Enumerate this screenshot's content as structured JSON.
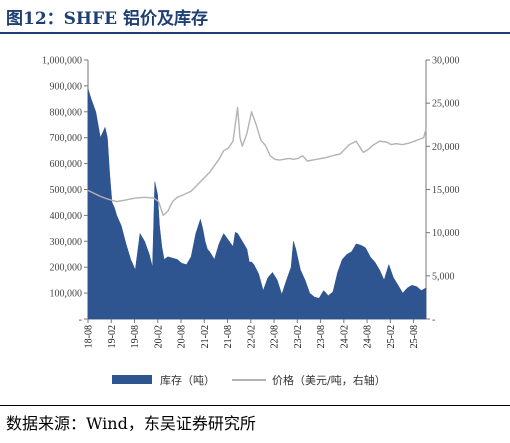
{
  "title": "图12：SHFE 铝价及库存",
  "source": "数据来源：Wind，东吴证券研究所",
  "chart_data": {
    "type": "area+line",
    "left_axis": {
      "ticks": [
        0,
        100000,
        200000,
        300000,
        400000,
        500000,
        600000,
        700000,
        800000,
        900000,
        1000000
      ],
      "tick_labels": [
        "-",
        "100,000",
        "200,000",
        "300,000",
        "400,000",
        "500,000",
        "600,000",
        "700,000",
        "800,000",
        "900,000",
        "1,000,000"
      ],
      "ylim": [
        0,
        1000000
      ]
    },
    "right_axis": {
      "ticks": [
        0,
        5000,
        10000,
        15000,
        20000,
        25000,
        30000
      ],
      "tick_labels": [
        "-",
        "5,000",
        "10,000",
        "15,000",
        "20,000",
        "25,000",
        "30,000"
      ],
      "ylim": [
        0,
        30000
      ]
    },
    "x_tick_labels": [
      "18-08",
      "19-02",
      "19-08",
      "20-02",
      "20-08",
      "21-02",
      "21-08",
      "22-02",
      "22-08",
      "23-02",
      "23-08",
      "24-02",
      "24-08",
      "25-02",
      "25-08"
    ],
    "x_range": [
      2018.583,
      2025.85
    ],
    "legend": [
      "库存（吨）",
      "价格（美元/吨，右轴）"
    ],
    "colors": {
      "inventory": "#2f5590",
      "price": "#b3b3b3"
    },
    "inventory": {
      "x": [
        2018.58,
        2018.65,
        2018.75,
        2018.85,
        2018.95,
        2019.0,
        2019.05,
        2019.1,
        2019.15,
        2019.2,
        2019.3,
        2019.4,
        2019.5,
        2019.6,
        2019.7,
        2019.8,
        2019.9,
        2019.97,
        2020.02,
        2020.08,
        2020.12,
        2020.17,
        2020.22,
        2020.3,
        2020.4,
        2020.5,
        2020.6,
        2020.7,
        2020.8,
        2020.9,
        2021.0,
        2021.05,
        2021.1,
        2021.15,
        2021.2,
        2021.3,
        2021.4,
        2021.5,
        2021.6,
        2021.7,
        2021.75,
        2021.8,
        2021.9,
        2022.0,
        2022.05,
        2022.1,
        2022.15,
        2022.25,
        2022.35,
        2022.45,
        2022.55,
        2022.65,
        2022.75,
        2022.85,
        2022.95,
        2023.0,
        2023.05,
        2023.15,
        2023.25,
        2023.35,
        2023.45,
        2023.55,
        2023.65,
        2023.75,
        2023.85,
        2023.95,
        2024.05,
        2024.15,
        2024.25,
        2024.35,
        2024.45,
        2024.55,
        2024.65,
        2024.75,
        2024.85,
        2024.95,
        2025.05,
        2025.15,
        2025.25,
        2025.35,
        2025.45,
        2025.55,
        2025.65,
        2025.75,
        2025.85
      ],
      "values": [
        890000,
        850000,
        800000,
        700000,
        740000,
        700000,
        560000,
        450000,
        430000,
        400000,
        360000,
        290000,
        230000,
        190000,
        330000,
        300000,
        250000,
        200000,
        530000,
        480000,
        360000,
        280000,
        230000,
        240000,
        235000,
        230000,
        215000,
        210000,
        240000,
        330000,
        385000,
        350000,
        300000,
        270000,
        260000,
        230000,
        290000,
        330000,
        305000,
        280000,
        335000,
        330000,
        300000,
        270000,
        220000,
        220000,
        210000,
        175000,
        110000,
        160000,
        180000,
        150000,
        95000,
        150000,
        200000,
        300000,
        270000,
        190000,
        150000,
        100000,
        85000,
        80000,
        110000,
        90000,
        105000,
        180000,
        230000,
        250000,
        260000,
        290000,
        285000,
        275000,
        240000,
        220000,
        190000,
        150000,
        210000,
        160000,
        130000,
        100000,
        120000,
        130000,
        125000,
        110000,
        120000
      ]
    },
    "price": {
      "x": [
        2018.58,
        2018.7,
        2018.85,
        2019.0,
        2019.2,
        2019.4,
        2019.6,
        2019.8,
        2020.0,
        2020.1,
        2020.2,
        2020.3,
        2020.4,
        2020.5,
        2020.6,
        2020.8,
        2021.0,
        2021.2,
        2021.4,
        2021.5,
        2021.6,
        2021.7,
        2021.8,
        2021.85,
        2021.9,
        2022.0,
        2022.1,
        2022.2,
        2022.3,
        2022.4,
        2022.5,
        2022.6,
        2022.7,
        2022.8,
        2022.9,
        2023.0,
        2023.1,
        2023.2,
        2023.3,
        2023.5,
        2023.7,
        2023.9,
        2024.0,
        2024.2,
        2024.35,
        2024.5,
        2024.6,
        2024.7,
        2024.85,
        2025.0,
        2025.1,
        2025.2,
        2025.35,
        2025.5,
        2025.6,
        2025.7,
        2025.8,
        2025.85
      ],
      "values": [
        14900,
        14600,
        14200,
        13900,
        13600,
        13800,
        14000,
        14100,
        14000,
        13600,
        12000,
        12500,
        13600,
        14100,
        14300,
        14800,
        15900,
        17000,
        18500,
        19500,
        19800,
        20600,
        24500,
        21000,
        20000,
        21500,
        24000,
        22500,
        20700,
        20100,
        18900,
        18500,
        18400,
        18500,
        18600,
        18500,
        18600,
        18900,
        18300,
        18500,
        18700,
        19000,
        19100,
        20200,
        20600,
        19300,
        19600,
        20100,
        20600,
        20500,
        20200,
        20300,
        20200,
        20400,
        20600,
        20800,
        21000,
        22000
      ]
    }
  }
}
